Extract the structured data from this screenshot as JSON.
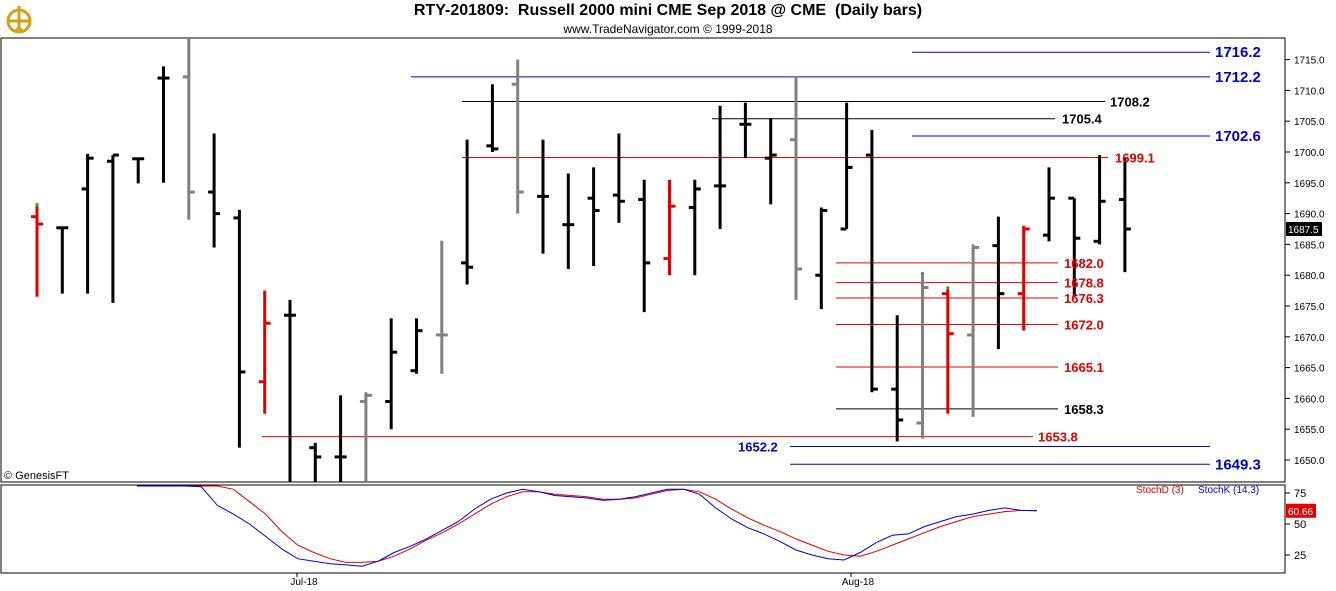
{
  "header": {
    "title": "RTY-201809:  Russell 2000 mini CME Sep 2018 @ CME  (Daily bars)",
    "subtitle": "www.TradeNavigator.com © 1999-2018"
  },
  "watermark": "© GenesisFT",
  "colors": {
    "black": "#000000",
    "gray": "#808080",
    "red": "#e00000",
    "blue": "#0000cc",
    "green": "#22aa22"
  },
  "chart_data": [
    {
      "type": "ohlc",
      "ylim": [
        1646,
        1719
      ],
      "y_ticks": [
        1650,
        1655,
        1660,
        1665,
        1670,
        1675,
        1680,
        1685,
        1690,
        1695,
        1700,
        1705,
        1710,
        1715
      ],
      "y_tick_labels": [
        "1650.0",
        "1655.0",
        "1660.0",
        "1665.0",
        "1670.0",
        "1675.0",
        "1680.0",
        "1685.0",
        "1690.0",
        "1695.0",
        "1700.0",
        "1705.0",
        "1710.0",
        "1715.0"
      ],
      "last_price": "1687.5",
      "bars": [
        {
          "o": 1689.5,
          "h": 1691.2,
          "l": 1676.5,
          "c": 1688.3,
          "color": "red",
          "mark": "green"
        },
        {
          "o": 1687.7,
          "h": 1687.7,
          "l": 1677.0,
          "c": 1687.7,
          "color": "black"
        },
        {
          "o": 1694.0,
          "h": 1699.7,
          "l": 1677.0,
          "c": 1699.0,
          "color": "black"
        },
        {
          "o": 1698.5,
          "h": 1699.5,
          "l": 1675.5,
          "c": 1699.5,
          "color": "black"
        },
        {
          "o": 1698.9,
          "h": 1698.9,
          "l": 1694.9,
          "c": 1698.9,
          "color": "black"
        },
        {
          "o": 1712.0,
          "h": 1713.9,
          "l": 1695.0,
          "c": 1712.0,
          "color": "black"
        },
        {
          "o": 1712.2,
          "h": 1719.0,
          "l": 1689.0,
          "c": 1693.5,
          "color": "gray"
        },
        {
          "o": 1693.5,
          "h": 1703.0,
          "l": 1684.5,
          "c": 1690.0,
          "color": "black"
        },
        {
          "o": 1689.3,
          "h": 1690.6,
          "l": 1652.0,
          "c": 1664.3,
          "color": "black"
        },
        {
          "o": 1662.7,
          "h": 1677.5,
          "l": 1657.5,
          "c": 1672.2,
          "color": "red"
        },
        {
          "o": 1673.5,
          "h": 1676.0,
          "l": 1646.0,
          "c": 1673.5,
          "color": "black"
        },
        {
          "o": 1652.0,
          "h": 1652.8,
          "l": 1646.0,
          "c": 1650.5,
          "color": "black"
        },
        {
          "o": 1650.5,
          "h": 1660.5,
          "l": 1646.0,
          "c": 1650.5,
          "color": "black"
        },
        {
          "o": 1659.5,
          "h": 1661.0,
          "l": 1646.0,
          "c": 1660.5,
          "color": "gray"
        },
        {
          "o": 1659.5,
          "h": 1673.0,
          "l": 1655.0,
          "c": 1667.5,
          "color": "black"
        },
        {
          "o": 1664.5,
          "h": 1673.0,
          "l": 1664.0,
          "c": 1671.0,
          "color": "black"
        },
        {
          "o": 1670.3,
          "h": 1685.6,
          "l": 1664.0,
          "c": 1670.3,
          "color": "gray"
        },
        {
          "o": 1682.0,
          "h": 1702.0,
          "l": 1678.5,
          "c": 1681.3,
          "color": "black"
        },
        {
          "o": 1701.0,
          "h": 1711.0,
          "l": 1700.0,
          "c": 1700.5,
          "color": "black"
        },
        {
          "o": 1711.0,
          "h": 1715.0,
          "l": 1690.0,
          "c": 1693.5,
          "color": "gray"
        },
        {
          "o": 1692.8,
          "h": 1702.0,
          "l": 1683.5,
          "c": 1692.8,
          "color": "black"
        },
        {
          "o": 1688.2,
          "h": 1696.5,
          "l": 1681.0,
          "c": 1688.2,
          "color": "black"
        },
        {
          "o": 1692.5,
          "h": 1697.5,
          "l": 1681.5,
          "c": 1690.5,
          "color": "black"
        },
        {
          "o": 1693.0,
          "h": 1703.0,
          "l": 1688.5,
          "c": 1692.0,
          "color": "black"
        },
        {
          "o": 1692.3,
          "h": 1695.5,
          "l": 1674.0,
          "c": 1682.0,
          "color": "black"
        },
        {
          "o": 1682.7,
          "h": 1695.5,
          "l": 1680.0,
          "c": 1691.2,
          "color": "red"
        },
        {
          "o": 1691.0,
          "h": 1695.5,
          "l": 1680.0,
          "c": 1694.0,
          "color": "black"
        },
        {
          "o": 1694.5,
          "h": 1707.5,
          "l": 1687.5,
          "c": 1694.5,
          "color": "black"
        },
        {
          "o": 1704.5,
          "h": 1708.0,
          "l": 1699.0,
          "c": 1704.5,
          "color": "black"
        },
        {
          "o": 1699.0,
          "h": 1705.5,
          "l": 1691.5,
          "c": 1699.5,
          "color": "black"
        },
        {
          "o": 1702.0,
          "h": 1712.3,
          "l": 1676.0,
          "c": 1681.0,
          "color": "gray"
        },
        {
          "o": 1680.0,
          "h": 1691.0,
          "l": 1674.5,
          "c": 1690.5,
          "color": "black"
        },
        {
          "o": 1687.5,
          "h": 1708.0,
          "l": 1687.5,
          "c": 1697.5,
          "color": "black"
        },
        {
          "o": 1699.5,
          "h": 1703.6,
          "l": 1661.0,
          "c": 1661.5,
          "color": "black"
        },
        {
          "o": 1661.5,
          "h": 1673.5,
          "l": 1653.0,
          "c": 1656.5,
          "color": "black"
        },
        {
          "o": 1656.0,
          "h": 1680.0,
          "l": 1653.5,
          "c": 1678.0,
          "color": "gray",
          "mark": "green"
        },
        {
          "o": 1677.0,
          "h": 1677.7,
          "l": 1657.5,
          "c": 1670.5,
          "color": "red",
          "mark": "green"
        },
        {
          "o": 1670.3,
          "h": 1685.0,
          "l": 1657.0,
          "c": 1684.5,
          "color": "gray"
        },
        {
          "o": 1684.8,
          "h": 1689.5,
          "l": 1668.0,
          "c": 1677.0,
          "color": "black"
        },
        {
          "o": 1677.0,
          "h": 1688.0,
          "l": 1671.0,
          "c": 1687.5,
          "color": "red"
        },
        {
          "o": 1686.5,
          "h": 1697.5,
          "l": 1685.5,
          "c": 1692.5,
          "color": "black"
        },
        {
          "o": 1692.5,
          "h": 1692.5,
          "l": 1676.5,
          "c": 1686.0,
          "color": "black"
        },
        {
          "o": 1685.5,
          "h": 1699.5,
          "l": 1685.0,
          "c": 1692.0,
          "color": "black"
        },
        {
          "o": 1692.3,
          "h": 1699.0,
          "l": 1680.5,
          "c": 1687.5,
          "color": "black"
        }
      ],
      "levels": [
        {
          "value": 1716.2,
          "label": "1716.2",
          "color": "blue",
          "from": "1716"
        },
        {
          "value": 1712.2,
          "label": "1712.2",
          "color": "blue"
        },
        {
          "value": 1708.2,
          "label": "1708.2",
          "color": "black"
        },
        {
          "value": 1705.4,
          "label": "1705.4",
          "color": "black"
        },
        {
          "value": 1702.6,
          "label": "1702.6",
          "color": "blue"
        },
        {
          "value": 1699.1,
          "label": "1699.1",
          "color": "red"
        },
        {
          "value": 1682.0,
          "label": "1682.0",
          "color": "red"
        },
        {
          "value": 1678.8,
          "label": "1678.8",
          "color": "red"
        },
        {
          "value": 1676.3,
          "label": "1676.3",
          "color": "red"
        },
        {
          "value": 1672.0,
          "label": "1672.0",
          "color": "red"
        },
        {
          "value": 1665.1,
          "label": "1665.1",
          "color": "red"
        },
        {
          "value": 1658.3,
          "label": "1658.3",
          "color": "black"
        },
        {
          "value": 1653.8,
          "label": "1653.8",
          "color": "red"
        },
        {
          "value": 1652.2,
          "label": "1652.2",
          "color": "blue"
        },
        {
          "value": 1649.3,
          "label": "1649.3",
          "color": "blue"
        }
      ]
    },
    {
      "type": "line",
      "ylim": [
        15,
        85
      ],
      "y_ticks": [
        25,
        50,
        75
      ],
      "y_tick_labels": [
        "25",
        "50",
        "75"
      ],
      "last_value": "60.66",
      "legend": [
        "StochD (3)",
        "StochK (14,3)"
      ],
      "series": [
        {
          "name": "StochD (3)",
          "color": "red",
          "values": [
            95,
            95,
            95,
            95,
            88,
            85,
            78,
            68,
            58,
            44,
            33,
            27,
            22,
            19,
            19,
            20,
            24,
            30,
            37,
            43,
            50,
            58,
            66,
            72,
            76,
            76,
            74,
            73,
            72,
            70,
            70,
            71,
            74,
            77,
            78,
            76,
            70,
            62,
            55,
            49,
            44,
            38,
            33,
            28,
            25,
            24,
            28,
            33,
            38,
            43,
            48,
            52,
            56,
            58,
            60,
            61,
            60.66
          ]
        },
        {
          "name": "StochK (14,3)",
          "color": "blue",
          "values": [
            95,
            95,
            95,
            95,
            80,
            65,
            58,
            50,
            40,
            30,
            22,
            20,
            18,
            17,
            16,
            20,
            27,
            32,
            38,
            45,
            52,
            62,
            70,
            75,
            78,
            76,
            73,
            72,
            71,
            69,
            70,
            72,
            75,
            78,
            78,
            74,
            63,
            54,
            47,
            42,
            36,
            29,
            25,
            22,
            21,
            27,
            35,
            41,
            42,
            48,
            52,
            56,
            58,
            61,
            63,
            61,
            60.66
          ]
        }
      ]
    }
  ],
  "x_labels": [
    "Jul-18",
    "Aug-18"
  ]
}
